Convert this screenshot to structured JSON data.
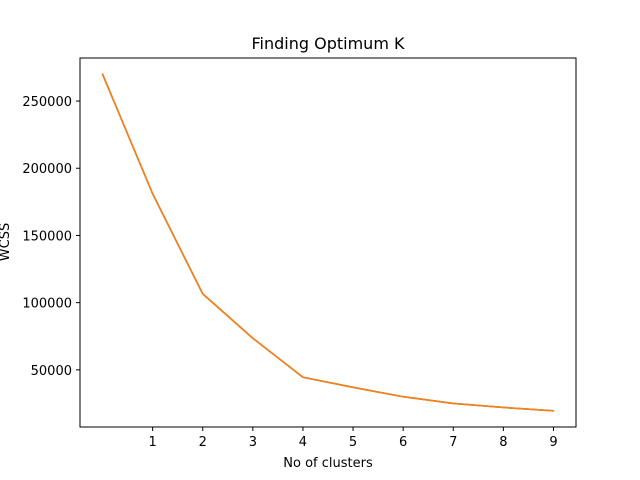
{
  "chart_data": {
    "type": "line",
    "title": "Finding Optimum K",
    "xlabel": "No of clusters",
    "ylabel": "WCSS",
    "x": [
      0,
      1,
      2,
      3,
      4,
      5,
      6,
      7,
      8,
      9
    ],
    "series": [
      {
        "values": [
          270000,
          181000,
          106500,
          73500,
          44500,
          37000,
          30000,
          25000,
          22000,
          19500
        ],
        "color": "#1f77b4"
      },
      {
        "values": [
          270000,
          181000,
          106500,
          73500,
          44500,
          37000,
          30000,
          25000,
          22000,
          19500
        ],
        "color": "#ff7f0e"
      }
    ],
    "x_ticks": [
      1,
      2,
      3,
      4,
      5,
      6,
      7,
      8,
      9
    ],
    "x_tick_labels": [
      "1",
      "2",
      "3",
      "4",
      "5",
      "6",
      "7",
      "8",
      "9"
    ],
    "y_ticks": [
      50000,
      100000,
      150000,
      200000,
      250000
    ],
    "y_tick_labels": [
      "50000",
      "100000",
      "150000",
      "200000",
      "250000"
    ],
    "xlim": [
      -0.45,
      9.45
    ],
    "ylim": [
      7475,
      282025
    ],
    "grid": false
  }
}
